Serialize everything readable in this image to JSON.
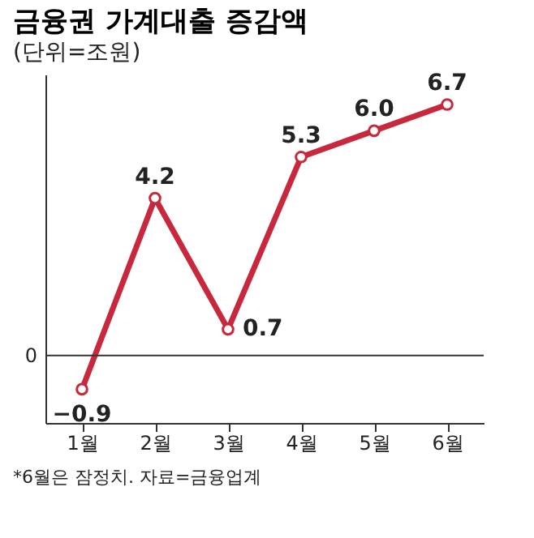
{
  "chart_data": {
    "type": "line",
    "title": "금융권 가계대출 증감액",
    "subtitle": "(단위=조원)",
    "categories": [
      "1월",
      "2월",
      "3월",
      "4월",
      "5월",
      "6월"
    ],
    "series": [
      {
        "color": "#c8283c",
        "values": [
          -0.9,
          4.2,
          0.7,
          5.3,
          6.0,
          6.7
        ],
        "value_labels": [
          "−0.9",
          "4.2",
          "0.7",
          "5.3",
          "6.0",
          "6.7"
        ]
      }
    ],
    "ylim": [
      -1.8,
      7.5
    ],
    "ref_lines": [
      {
        "axis": "y",
        "value": 0,
        "label": "0",
        "color": "#333333"
      }
    ],
    "marker": "circle",
    "line_style": "solid",
    "annotations": [
      "*6월은 잠정치. 자료=금융업계"
    ]
  }
}
